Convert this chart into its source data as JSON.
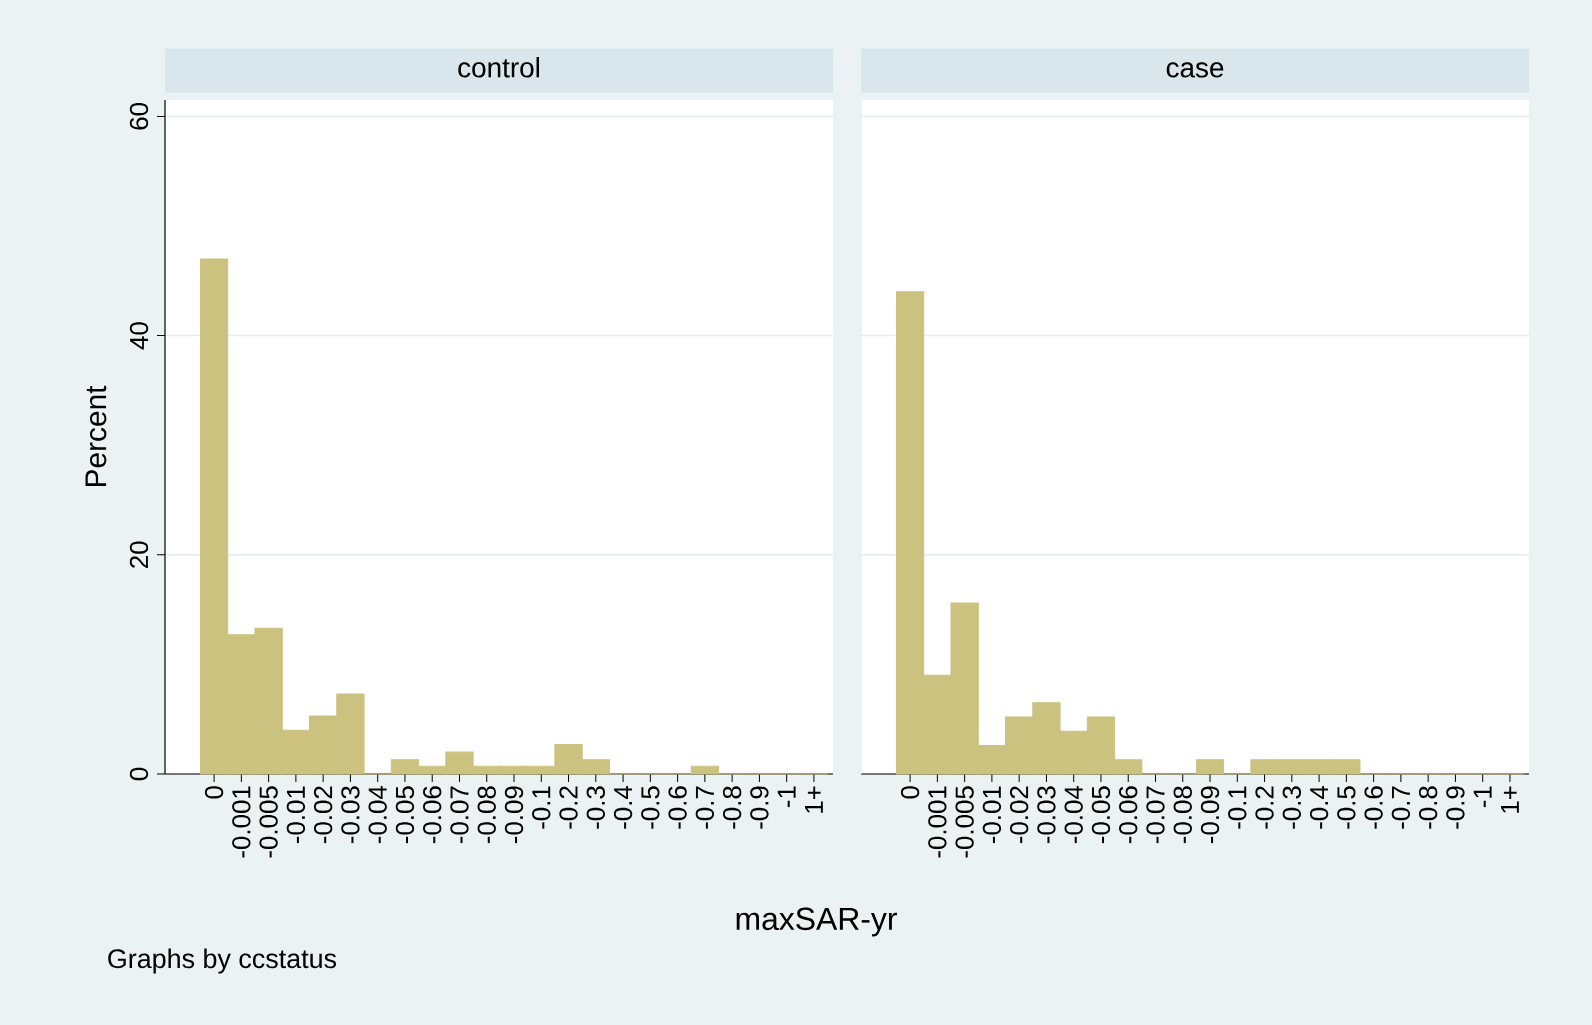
{
  "chart_data": [
    {
      "type": "bar",
      "title": "control",
      "xlabel": "maxSAR-yr",
      "ylabel": "Percent",
      "annotations": [
        "Graphs by ccstatus"
      ],
      "categories": [
        "0",
        "-0.001",
        "-0.005",
        "-0.01",
        "-0.02",
        "-0.03",
        "-0.04",
        "-0.05",
        "-0.06",
        "-0.07",
        "-0.08",
        "-0.09",
        "-0.1",
        "-0.2",
        "-0.3",
        "-0.4",
        "-0.5",
        "-0.6",
        "-0.7",
        "-0.8",
        "-0.9",
        "-1",
        "1+"
      ],
      "values": [
        47,
        12.7,
        13.3,
        4,
        5.3,
        7.3,
        0,
        1.3,
        0.7,
        2,
        0.7,
        0.7,
        0.7,
        2.7,
        1.3,
        0,
        0,
        0,
        0.7,
        0,
        0,
        0,
        0
      ],
      "color": "#ccc27f",
      "ylim": [
        0,
        61.5
      ],
      "yticks": [
        0,
        20,
        40,
        60
      ],
      "grid": "y"
    },
    {
      "type": "bar",
      "title": "case",
      "categories": [
        "0",
        "-0.001",
        "-0.005",
        "-0.01",
        "-0.02",
        "-0.03",
        "-0.04",
        "-0.05",
        "-0.06",
        "-0.07",
        "-0.08",
        "-0.09",
        "-0.1",
        "-0.2",
        "-0.3",
        "-0.4",
        "-0.5",
        "-0.6",
        "-0.7",
        "-0.8",
        "-0.9",
        "-1",
        "1+"
      ],
      "values": [
        44,
        9,
        15.6,
        2.6,
        5.2,
        6.5,
        3.9,
        5.2,
        1.3,
        0,
        0,
        1.3,
        0,
        1.3,
        1.3,
        1.3,
        1.3,
        0,
        0,
        0,
        0,
        0,
        0
      ],
      "color": "#ccc27f",
      "ylim": [
        0,
        61.5
      ],
      "yticks": [
        0,
        20,
        40,
        60
      ],
      "grid": "y",
      "tick_labels": "x"
    }
  ]
}
